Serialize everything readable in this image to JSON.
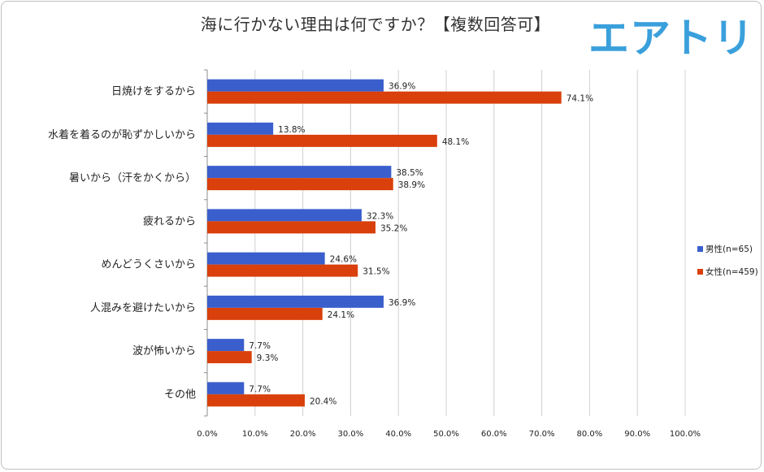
{
  "brand": {
    "logo_text": "エアトリ",
    "logo_color": "#3aa0dc"
  },
  "chart_data": {
    "type": "bar",
    "orientation": "horizontal",
    "title": "海に行かない理由は何ですか？【複数回答可】",
    "categories": [
      "日焼けをするから",
      "水着を着るのが恥ずかしいから",
      "暑いから（汗をかくから）",
      "疲れるから",
      "めんどうくさいから",
      "人混みを避けたいから",
      "波が怖いから",
      "その他"
    ],
    "series": [
      {
        "name": "男性(n=65)",
        "color": "#3a5fcd",
        "values": [
          36.9,
          13.8,
          38.5,
          32.3,
          24.6,
          36.9,
          7.7,
          7.7
        ],
        "labels": [
          "36.9%",
          "13.8%",
          "38.5%",
          "32.3%",
          "24.6%",
          "36.9%",
          "7.7%",
          "7.7%"
        ]
      },
      {
        "name": "女性(n=459)",
        "color": "#d9400b",
        "values": [
          74.1,
          48.1,
          38.9,
          35.2,
          31.5,
          24.1,
          9.3,
          20.4
        ],
        "labels": [
          "74.1%",
          "48.1%",
          "38.9%",
          "35.2%",
          "31.5%",
          "24.1%",
          "9.3%",
          "20.4%"
        ]
      }
    ],
    "xlim": [
      0,
      100
    ],
    "xticks": [
      "0.0%",
      "10.0%",
      "20.0%",
      "30.0%",
      "40.0%",
      "50.0%",
      "60.0%",
      "70.0%",
      "80.0%",
      "90.0%",
      "100.0%"
    ],
    "grid": true,
    "legend_position": "right"
  }
}
